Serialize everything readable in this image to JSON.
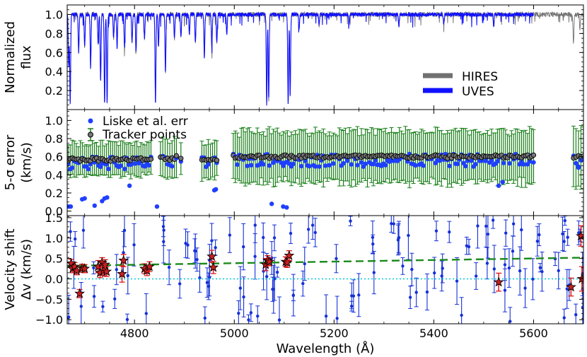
{
  "chart_data": {
    "type": "multi-panel",
    "xlabel": "Wavelength (Å)",
    "xlim": [
      4665,
      5700
    ],
    "xticks": [
      4800,
      5000,
      5200,
      5400,
      5600
    ],
    "xtick_labels": [
      "4800",
      "5000",
      "5200",
      "5400",
      "5600"
    ],
    "panels": [
      {
        "id": "flux",
        "type": "line",
        "ylabel": [
          "Normalized",
          "flux"
        ],
        "ylim": [
          0.0,
          1.1
        ],
        "yticks": [
          0.2,
          0.4,
          0.6,
          0.8,
          1.0
        ],
        "ytick_labels": [
          "0.2",
          "0.4",
          "0.6",
          "0.8",
          "1.0"
        ],
        "legend": {
          "position": "lower-right",
          "entries": [
            "HIRES",
            "UVES"
          ]
        },
        "series": [
          {
            "name": "HIRES",
            "color": "#707070",
            "x_range": [
              4665,
              5700
            ],
            "continuum": 1.0,
            "noise": 0.025
          },
          {
            "name": "UVES",
            "color": "#1010ff",
            "x_range": [
              4665,
              5600
            ],
            "continuum": 1.0,
            "noise": 0.02
          }
        ],
        "absorption_lines": [
          {
            "x": 4668,
            "depth": 0.55
          },
          {
            "x": 4671,
            "depth": 0.95
          },
          {
            "x": 4688,
            "depth": 0.4
          },
          {
            "x": 4700,
            "depth": 0.35
          },
          {
            "x": 4712,
            "depth": 0.55
          },
          {
            "x": 4727,
            "depth": 0.3
          },
          {
            "x": 4732,
            "depth": 0.7
          },
          {
            "x": 4740,
            "depth": 0.95
          },
          {
            "x": 4745,
            "depth": 0.95
          },
          {
            "x": 4758,
            "depth": 0.25
          },
          {
            "x": 4765,
            "depth": 0.35
          },
          {
            "x": 4780,
            "depth": 0.35
          },
          {
            "x": 4795,
            "depth": 0.3
          },
          {
            "x": 4803,
            "depth": 0.4
          },
          {
            "x": 4820,
            "depth": 0.25
          },
          {
            "x": 4842,
            "depth": 0.95
          },
          {
            "x": 4848,
            "depth": 0.35
          },
          {
            "x": 4862,
            "depth": 0.6
          },
          {
            "x": 4880,
            "depth": 0.25
          },
          {
            "x": 4893,
            "depth": 0.25
          },
          {
            "x": 4910,
            "depth": 0.2
          },
          {
            "x": 4922,
            "depth": 0.3
          },
          {
            "x": 4940,
            "depth": 0.45
          },
          {
            "x": 4955,
            "depth": 0.35
          },
          {
            "x": 4965,
            "depth": 0.3
          },
          {
            "x": 4985,
            "depth": 0.2
          },
          {
            "x": 5065,
            "depth": 0.95
          },
          {
            "x": 5069,
            "depth": 0.9
          },
          {
            "x": 5108,
            "depth": 0.95
          },
          {
            "x": 5112,
            "depth": 0.85
          },
          {
            "x": 5130,
            "depth": 0.15
          },
          {
            "x": 5170,
            "depth": 0.12
          },
          {
            "x": 5230,
            "depth": 0.1
          },
          {
            "x": 5330,
            "depth": 0.12
          },
          {
            "x": 5420,
            "depth": 0.1
          },
          {
            "x": 5520,
            "depth": 0.12
          },
          {
            "x": 5680,
            "depth": 0.3
          },
          {
            "x": 5693,
            "depth": 0.15
          }
        ]
      },
      {
        "id": "error",
        "type": "scatter",
        "ylabel": [
          "5-σ error",
          "(km/s)"
        ],
        "ylim": [
          -0.05,
          1.12
        ],
        "yticks": [
          0.0,
          0.2,
          0.4,
          0.6,
          0.8,
          1.0
        ],
        "ytick_labels": [
          "0.0",
          "0.2",
          "0.4",
          "0.6",
          "0.8",
          "1.0"
        ],
        "legend": {
          "position": "top-left",
          "entries": [
            "Liske et al. err",
            "Tracker points"
          ]
        },
        "tracker_segments": [
          {
            "x_start": 4667,
            "x_end": 4833,
            "value": 0.57,
            "err": 0.18
          },
          {
            "x_start": 4852,
            "x_end": 4880,
            "value": 0.58,
            "err": 0.2
          },
          {
            "x_start": 4884,
            "x_end": 4893,
            "value": 0.6,
            "err": 0.2
          },
          {
            "x_start": 4935,
            "x_end": 4965,
            "value": 0.57,
            "err": 0.2
          },
          {
            "x_start": 4998,
            "x_end": 5600,
            "value": 0.6,
            "err": 0.28
          },
          {
            "x_start": 5680,
            "x_end": 5700,
            "value": 0.6,
            "err": 0.35
          }
        ],
        "liske_outliers": [
          {
            "x": 4668,
            "y": 0.05
          },
          {
            "x": 4672,
            "y": 0.05
          },
          {
            "x": 4695,
            "y": 0.13
          },
          {
            "x": 4700,
            "y": 0.14
          },
          {
            "x": 4720,
            "y": 0.06
          },
          {
            "x": 4735,
            "y": 0.11
          },
          {
            "x": 4740,
            "y": 0.14
          },
          {
            "x": 4745,
            "y": 0.15
          },
          {
            "x": 4790,
            "y": 0.28
          },
          {
            "x": 4845,
            "y": 0.05
          },
          {
            "x": 4960,
            "y": 0.23
          },
          {
            "x": 4963,
            "y": 0.24
          },
          {
            "x": 5075,
            "y": 0.08
          },
          {
            "x": 5098,
            "y": 0.05
          },
          {
            "x": 5105,
            "y": 0.04
          },
          {
            "x": 5530,
            "y": 0.28
          },
          {
            "x": 5538,
            "y": 0.32
          },
          {
            "x": 5690,
            "y": 0.48
          }
        ]
      },
      {
        "id": "shift",
        "type": "scatter",
        "ylabel": [
          "Velocity shift",
          "Δv (km/s)"
        ],
        "ylim": [
          -1.1,
          1.55
        ],
        "yticks": [
          -1.0,
          -0.5,
          0.0,
          0.5,
          1.0,
          1.5
        ],
        "ytick_labels": [
          "−1.0",
          "−0.5",
          "0.0",
          "0.5",
          "1.0",
          "1.5"
        ],
        "fit_line": {
          "x": [
            4665,
            5700
          ],
          "y": [
            0.32,
            0.52
          ],
          "color": "#1a8a1a"
        },
        "zero_line": {
          "y": 0.0,
          "color": "#00c8d8"
        },
        "star_points": [
          {
            "x": 4673,
            "y": 0.38,
            "err": 0.1
          },
          {
            "x": 4676,
            "y": 0.25,
            "err": 0.1
          },
          {
            "x": 4680,
            "y": 0.3,
            "err": 0.1
          },
          {
            "x": 4684,
            "y": 0.2,
            "err": 0.1
          },
          {
            "x": 4690,
            "y": -0.36,
            "err": 0.1
          },
          {
            "x": 4695,
            "y": 0.26,
            "err": 0.1
          },
          {
            "x": 4700,
            "y": 0.25,
            "err": 0.1
          },
          {
            "x": 4727,
            "y": 0.3,
            "err": 0.15
          },
          {
            "x": 4731,
            "y": 0.15,
            "err": 0.12
          },
          {
            "x": 4735,
            "y": 0.4,
            "err": 0.12
          },
          {
            "x": 4738,
            "y": 0.2,
            "err": 0.12
          },
          {
            "x": 4741,
            "y": 0.35,
            "err": 0.12
          },
          {
            "x": 4744,
            "y": 0.18,
            "err": 0.12
          },
          {
            "x": 4775,
            "y": 0.12,
            "err": 0.2
          },
          {
            "x": 4778,
            "y": 0.45,
            "err": 0.15
          },
          {
            "x": 4820,
            "y": 0.25,
            "err": 0.12
          },
          {
            "x": 4825,
            "y": 0.2,
            "err": 0.12
          },
          {
            "x": 4830,
            "y": 0.3,
            "err": 0.12
          },
          {
            "x": 4955,
            "y": 0.55,
            "err": 0.15
          },
          {
            "x": 4958,
            "y": 0.28,
            "err": 0.15
          },
          {
            "x": 5063,
            "y": 0.35,
            "err": 0.15
          },
          {
            "x": 5067,
            "y": 0.45,
            "err": 0.12
          },
          {
            "x": 5070,
            "y": 0.42,
            "err": 0.1
          },
          {
            "x": 5103,
            "y": 0.42,
            "err": 0.12
          },
          {
            "x": 5106,
            "y": 0.4,
            "err": 0.12
          },
          {
            "x": 5110,
            "y": 0.57,
            "err": 0.12
          },
          {
            "x": 5530,
            "y": -0.08,
            "err": 0.22
          },
          {
            "x": 5675,
            "y": -0.2,
            "err": 0.22
          },
          {
            "x": 5695,
            "y": 1.05,
            "err": 0.25
          },
          {
            "x": 5697,
            "y": 0.0,
            "err": 0.3
          }
        ],
        "blue_points": {
          "count": 130,
          "x_range": [
            4665,
            5700
          ],
          "y_range": [
            -1.05,
            1.45
          ],
          "seed": 7
        }
      }
    ]
  }
}
